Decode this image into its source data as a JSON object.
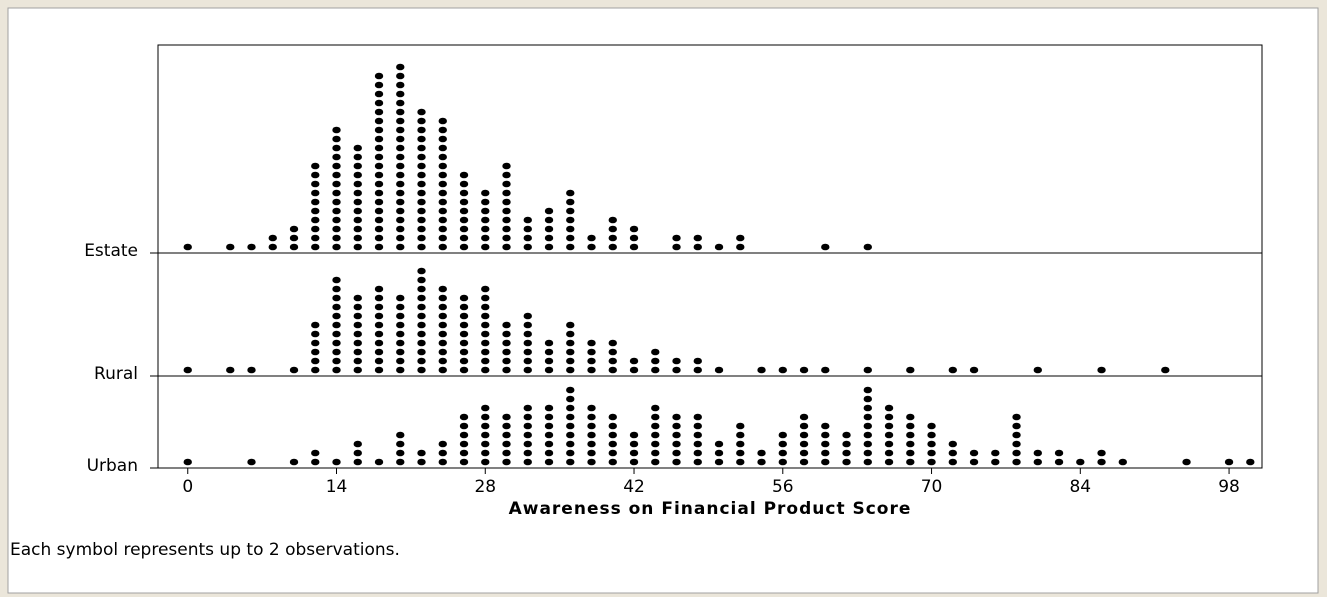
{
  "chart_data": {
    "type": "dotplot",
    "xlabel": "Awareness on Financial Product Score",
    "footnote": "Each symbol represents up to 2 observations.",
    "color": "#000000",
    "xlim": [
      -2.8,
      101.1
    ],
    "xticks": [
      0,
      14,
      28,
      42,
      56,
      70,
      84,
      98
    ],
    "series": [
      {
        "name": "Estate",
        "x": [
          0,
          4,
          6,
          8,
          10,
          12,
          14,
          16,
          18,
          20,
          22,
          24,
          26,
          28,
          30,
          32,
          34,
          36,
          38,
          40,
          42,
          46,
          48,
          50,
          52,
          60,
          64
        ],
        "values": [
          1,
          1,
          1,
          2,
          3,
          10,
          14,
          12,
          20,
          21,
          16,
          15,
          9,
          7,
          10,
          4,
          5,
          7,
          2,
          4,
          3,
          2,
          2,
          1,
          2,
          1,
          1
        ]
      },
      {
        "name": "Rural",
        "x": [
          0,
          4,
          6,
          10,
          12,
          14,
          16,
          18,
          20,
          22,
          24,
          26,
          28,
          30,
          32,
          34,
          36,
          38,
          40,
          42,
          44,
          46,
          48,
          50,
          54,
          56,
          58,
          60,
          64,
          68,
          72,
          74,
          80,
          86,
          92
        ],
        "values": [
          1,
          1,
          1,
          1,
          6,
          11,
          9,
          10,
          9,
          12,
          10,
          9,
          10,
          6,
          7,
          4,
          6,
          4,
          4,
          2,
          3,
          2,
          2,
          1,
          1,
          1,
          1,
          1,
          1,
          1,
          1,
          1,
          1,
          1,
          1
        ]
      },
      {
        "name": "Urban",
        "x": [
          0,
          6,
          10,
          12,
          14,
          16,
          18,
          20,
          22,
          24,
          26,
          28,
          30,
          32,
          34,
          36,
          38,
          40,
          42,
          44,
          46,
          48,
          50,
          52,
          54,
          56,
          58,
          60,
          62,
          64,
          66,
          68,
          70,
          72,
          74,
          76,
          78,
          80,
          82,
          84,
          86,
          88,
          94,
          98,
          100
        ],
        "values": [
          1,
          1,
          1,
          2,
          1,
          3,
          1,
          4,
          2,
          3,
          6,
          7,
          6,
          7,
          7,
          9,
          7,
          6,
          4,
          7,
          6,
          6,
          3,
          5,
          2,
          4,
          6,
          5,
          4,
          9,
          7,
          6,
          5,
          3,
          2,
          2,
          6,
          2,
          2,
          1,
          2,
          1,
          1,
          1,
          1
        ]
      }
    ]
  }
}
